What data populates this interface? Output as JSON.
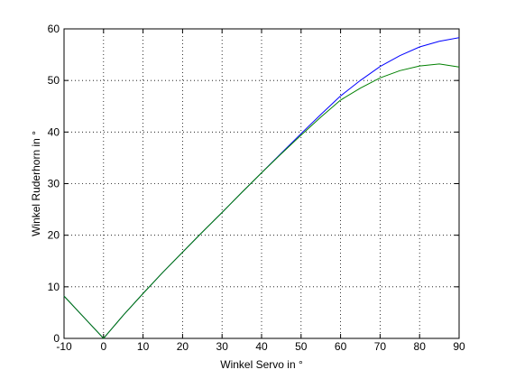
{
  "chart_data": {
    "type": "line",
    "xlabel": "Winkel Servo in °",
    "ylabel": "Winkel Ruderhorn in °",
    "x": [
      -10,
      -5,
      0,
      5,
      10,
      15,
      20,
      25,
      30,
      35,
      40,
      45,
      50,
      55,
      60,
      65,
      70,
      75,
      80,
      85,
      90
    ],
    "series": [
      {
        "color": "#0000ff",
        "values": [
          8.2,
          4.1,
          0,
          4.5,
          8.7,
          12.8,
          16.7,
          20.6,
          24.4,
          28.3,
          32.1,
          35.9,
          39.7,
          43.4,
          47.0,
          50.0,
          52.7,
          54.8,
          56.5,
          57.6,
          58.3
        ]
      },
      {
        "color": "#008000",
        "values": [
          8.2,
          4.1,
          0,
          4.5,
          8.7,
          12.8,
          16.7,
          20.6,
          24.4,
          28.3,
          32.1,
          35.8,
          39.4,
          42.9,
          46.2,
          48.5,
          50.5,
          51.9,
          52.8,
          53.2,
          52.6
        ]
      }
    ],
    "xlim": [
      -10,
      90
    ],
    "xticks": [
      -10,
      0,
      10,
      20,
      30,
      40,
      50,
      60,
      70,
      80,
      90
    ],
    "ylim": [
      0,
      60
    ],
    "yticks": [
      0,
      10,
      20,
      30,
      40,
      50,
      60
    ],
    "grid": true
  }
}
